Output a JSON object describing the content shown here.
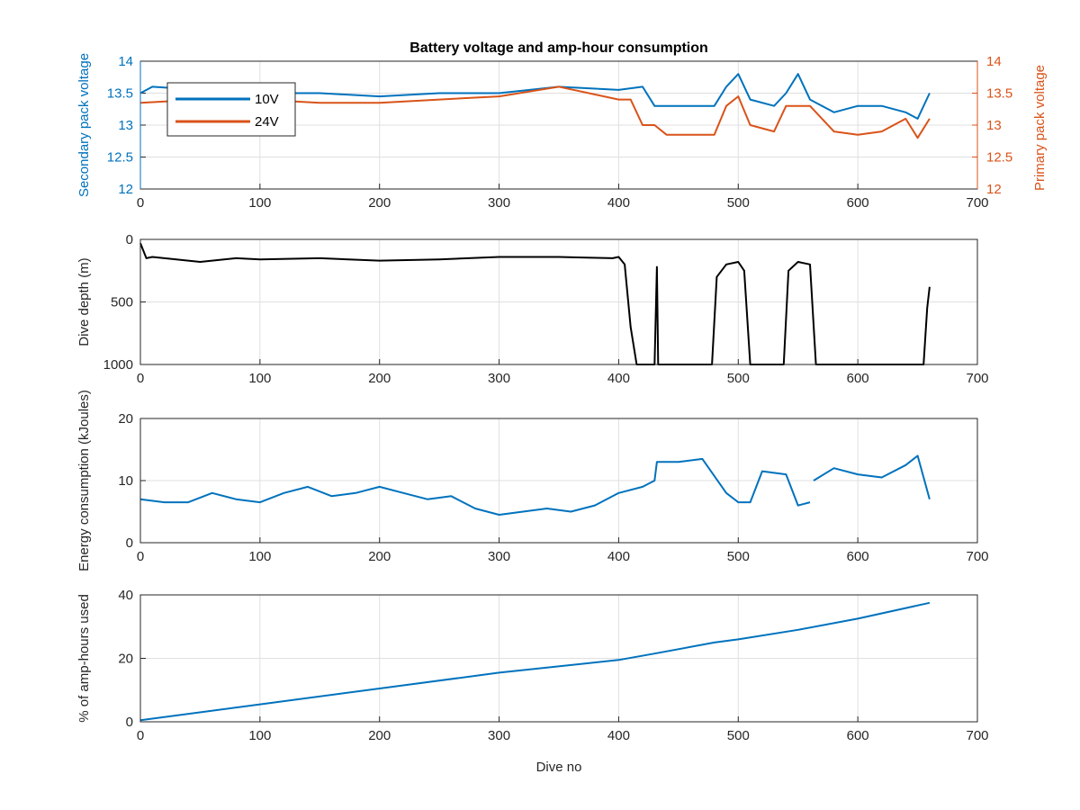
{
  "figure_title": "Battery voltage and amp-hour consumption",
  "colors": {
    "blue": "#0072BD",
    "orange": "#D95319",
    "black": "#000000",
    "axis": "#262626"
  },
  "chart_data": [
    {
      "type": "line",
      "title": "Battery voltage and amp-hour consumption",
      "xlabel": "",
      "ylabel": "Secondary pack voltage",
      "ylabel_right": "Primary pack voltage",
      "xlim": [
        0,
        700
      ],
      "ylim": [
        12,
        14
      ],
      "ylim_right": [
        12,
        14
      ],
      "xticks": [
        "0",
        "100",
        "200",
        "300",
        "400",
        "500",
        "600",
        "700"
      ],
      "yticks": [
        "12",
        "12.5",
        "13",
        "13.5",
        "14"
      ],
      "yticks_right": [
        "12",
        "12.5",
        "13",
        "13.5",
        "14"
      ],
      "grid": true,
      "legend": {
        "position": "top-left",
        "entries": [
          "10V",
          "24V"
        ]
      },
      "series": [
        {
          "name": "10V",
          "axis": "left",
          "color": "#0072BD",
          "x": [
            0,
            10,
            50,
            100,
            150,
            200,
            250,
            300,
            350,
            400,
            420,
            430,
            440,
            460,
            480,
            490,
            500,
            510,
            530,
            540,
            550,
            560,
            580,
            600,
            620,
            640,
            650,
            660
          ],
          "y": [
            13.5,
            13.6,
            13.55,
            13.5,
            13.5,
            13.45,
            13.5,
            13.5,
            13.6,
            13.55,
            13.6,
            13.3,
            13.3,
            13.3,
            13.3,
            13.6,
            13.8,
            13.4,
            13.3,
            13.5,
            13.8,
            13.4,
            13.2,
            13.3,
            13.3,
            13.2,
            13.1,
            13.5
          ]
        },
        {
          "name": "24V",
          "axis": "right",
          "color": "#D95319",
          "x": [
            0,
            50,
            100,
            150,
            200,
            250,
            300,
            350,
            400,
            410,
            420,
            430,
            440,
            460,
            480,
            490,
            500,
            510,
            530,
            540,
            560,
            580,
            600,
            620,
            640,
            650,
            660
          ],
          "y": [
            13.35,
            13.4,
            13.4,
            13.35,
            13.35,
            13.4,
            13.45,
            13.6,
            13.4,
            13.4,
            13.0,
            13.0,
            12.85,
            12.85,
            12.85,
            13.3,
            13.45,
            13.0,
            12.9,
            13.3,
            13.3,
            12.9,
            12.85,
            12.9,
            13.1,
            12.8,
            13.1
          ]
        }
      ]
    },
    {
      "type": "line",
      "xlabel": "",
      "ylabel": "Dive depth (m)",
      "xlim": [
        0,
        700
      ],
      "ylim": [
        0,
        1000
      ],
      "y_reversed": true,
      "xticks": [
        "0",
        "100",
        "200",
        "300",
        "400",
        "500",
        "600",
        "700"
      ],
      "yticks": [
        "0",
        "500",
        "1000"
      ],
      "grid": true,
      "series": [
        {
          "color": "#000000",
          "x": [
            0,
            5,
            10,
            30,
            50,
            60,
            80,
            100,
            150,
            200,
            250,
            300,
            350,
            395,
            400,
            405,
            410,
            415,
            430,
            432,
            433,
            435,
            478,
            482,
            490,
            500,
            505,
            510,
            538,
            542,
            550,
            560,
            565,
            600,
            655,
            658,
            660
          ],
          "y": [
            30,
            150,
            140,
            160,
            180,
            170,
            150,
            160,
            150,
            170,
            160,
            140,
            140,
            150,
            140,
            200,
            700,
            1000,
            1000,
            220,
            1000,
            1000,
            1000,
            300,
            200,
            180,
            250,
            1000,
            1000,
            250,
            180,
            200,
            1000,
            1000,
            1000,
            550,
            380
          ]
        }
      ]
    },
    {
      "type": "line",
      "xlabel": "",
      "ylabel": "Energy consumption (kJoules)",
      "xlim": [
        0,
        700
      ],
      "ylim": [
        0,
        20
      ],
      "xticks": [
        "0",
        "100",
        "200",
        "300",
        "400",
        "500",
        "600",
        "700"
      ],
      "yticks": [
        "0",
        "10",
        "20"
      ],
      "grid": true,
      "series": [
        {
          "color": "#0072BD",
          "x": [
            0,
            20,
            40,
            60,
            80,
            100,
            120,
            140,
            160,
            180,
            200,
            220,
            240,
            260,
            280,
            300,
            320,
            340,
            360,
            380,
            400,
            420,
            430,
            432,
            450,
            470,
            490,
            500,
            510,
            520,
            540,
            550,
            560
          ],
          "y": [
            7,
            6.5,
            6.5,
            8,
            7,
            6.5,
            8,
            9,
            7.5,
            8,
            9,
            8,
            7,
            7.5,
            5.5,
            4.5,
            5,
            5.5,
            5,
            6,
            8,
            9,
            10,
            13,
            13,
            13.5,
            8,
            6.5,
            6.5,
            11.5,
            11,
            6,
            6.5
          ]
        },
        {
          "color": "#0072BD",
          "x": [
            563,
            580,
            600,
            620,
            640,
            650,
            660
          ],
          "y": [
            10,
            12,
            11,
            10.5,
            12.5,
            14,
            7
          ]
        }
      ]
    },
    {
      "type": "line",
      "xlabel": "Dive no",
      "ylabel": "% of amp-hours used",
      "xlim": [
        0,
        700
      ],
      "ylim": [
        0,
        40
      ],
      "xticks": [
        "0",
        "100",
        "200",
        "300",
        "400",
        "500",
        "600",
        "700"
      ],
      "yticks": [
        "0",
        "20",
        "40"
      ],
      "grid": true,
      "series": [
        {
          "color": "#0072BD",
          "x": [
            0,
            100,
            200,
            300,
            400,
            430,
            480,
            500,
            550,
            600,
            660
          ],
          "y": [
            0.5,
            5.5,
            10.5,
            15.5,
            19.5,
            21.5,
            25,
            26,
            29,
            32.5,
            37.5
          ]
        }
      ]
    }
  ]
}
